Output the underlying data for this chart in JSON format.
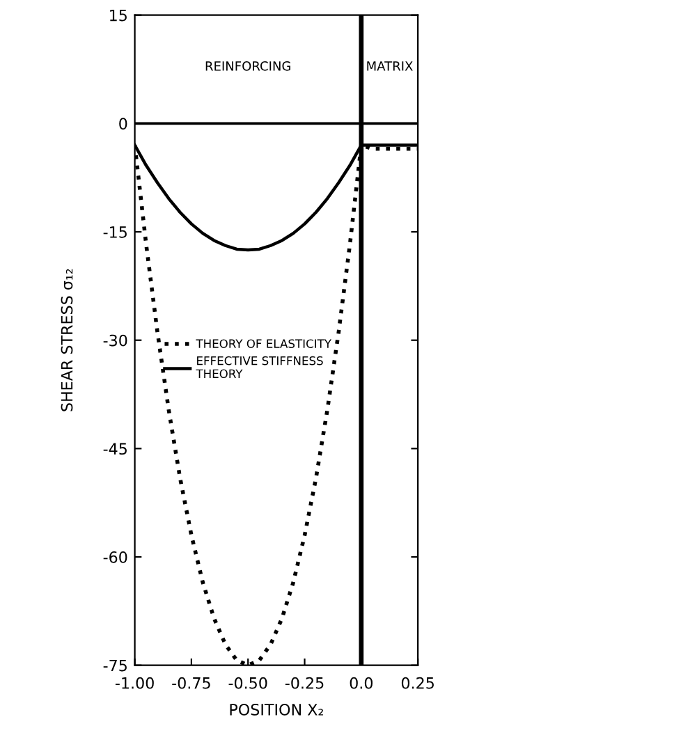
{
  "chart_data": {
    "type": "line",
    "xlabel": "POSITION X₂",
    "ylabel": "SHEAR STRESS σ₁₂",
    "xlim": [
      -1.0,
      0.25
    ],
    "xticks": [
      {
        "value": -1.0,
        "label": "-1.00"
      },
      {
        "value": -0.75,
        "label": "-0.75"
      },
      {
        "value": -0.5,
        "label": "-0.50"
      },
      {
        "value": -0.25,
        "label": "-0.25"
      },
      {
        "value": 0.0,
        "label": "0.0"
      },
      {
        "value": 0.25,
        "label": "0.25"
      }
    ],
    "ylim": [
      -75,
      15
    ],
    "yticks": [
      15,
      0,
      -15,
      -30,
      -45,
      -60,
      -75
    ],
    "grid": false,
    "legend": "center",
    "marker": "none",
    "annotations": [
      "REINFORCING",
      "MATRIX"
    ],
    "ref_lines": [
      {
        "axis": "y",
        "value": 0,
        "color": "#000000",
        "line_style": "solid"
      },
      {
        "axis": "x",
        "value": 0,
        "color": "#000000",
        "line_style": "solid"
      }
    ],
    "series": [
      {
        "name": "THEORY OF ELASTICITY",
        "color": "#000000",
        "line_style": "dotted",
        "x": [
          -1.0,
          -0.95,
          -0.9,
          -0.85,
          -0.8,
          -0.75,
          -0.7,
          -0.65,
          -0.6,
          -0.55,
          -0.5,
          -0.45,
          -0.4,
          -0.35,
          -0.3,
          -0.25,
          -0.2,
          -0.15,
          -0.1,
          -0.05,
          0.0,
          0.05,
          0.1,
          0.15,
          0.2,
          0.25
        ],
        "values": [
          -3,
          -16.7,
          -28.9,
          -39.7,
          -49.1,
          -57,
          -63.5,
          -68.5,
          -72.1,
          -74.3,
          -75,
          -74.3,
          -72.1,
          -68.5,
          -63.5,
          -57,
          -49.1,
          -39.7,
          -28.9,
          -16.7,
          -3,
          -3.5,
          -3.5,
          -3.5,
          -3.5,
          -3.5
        ]
      },
      {
        "name": "EFFECTIVE STIFFNESS\nTHEORY",
        "color": "#000000",
        "line_style": "solid",
        "x": [
          -1.0,
          -0.95,
          -0.9,
          -0.85,
          -0.8,
          -0.75,
          -0.7,
          -0.65,
          -0.6,
          -0.55,
          -0.5,
          -0.45,
          -0.4,
          -0.35,
          -0.3,
          -0.25,
          -0.2,
          -0.15,
          -0.1,
          -0.05,
          0.0,
          0.25
        ],
        "values": [
          -3,
          -5.8,
          -8.2,
          -10.4,
          -12.3,
          -13.9,
          -15.2,
          -16.2,
          -16.9,
          -17.4,
          -17.5,
          -17.4,
          -16.9,
          -16.2,
          -15.2,
          -13.9,
          -12.3,
          -10.4,
          -8.2,
          -5.8,
          -3,
          -3
        ]
      }
    ]
  }
}
